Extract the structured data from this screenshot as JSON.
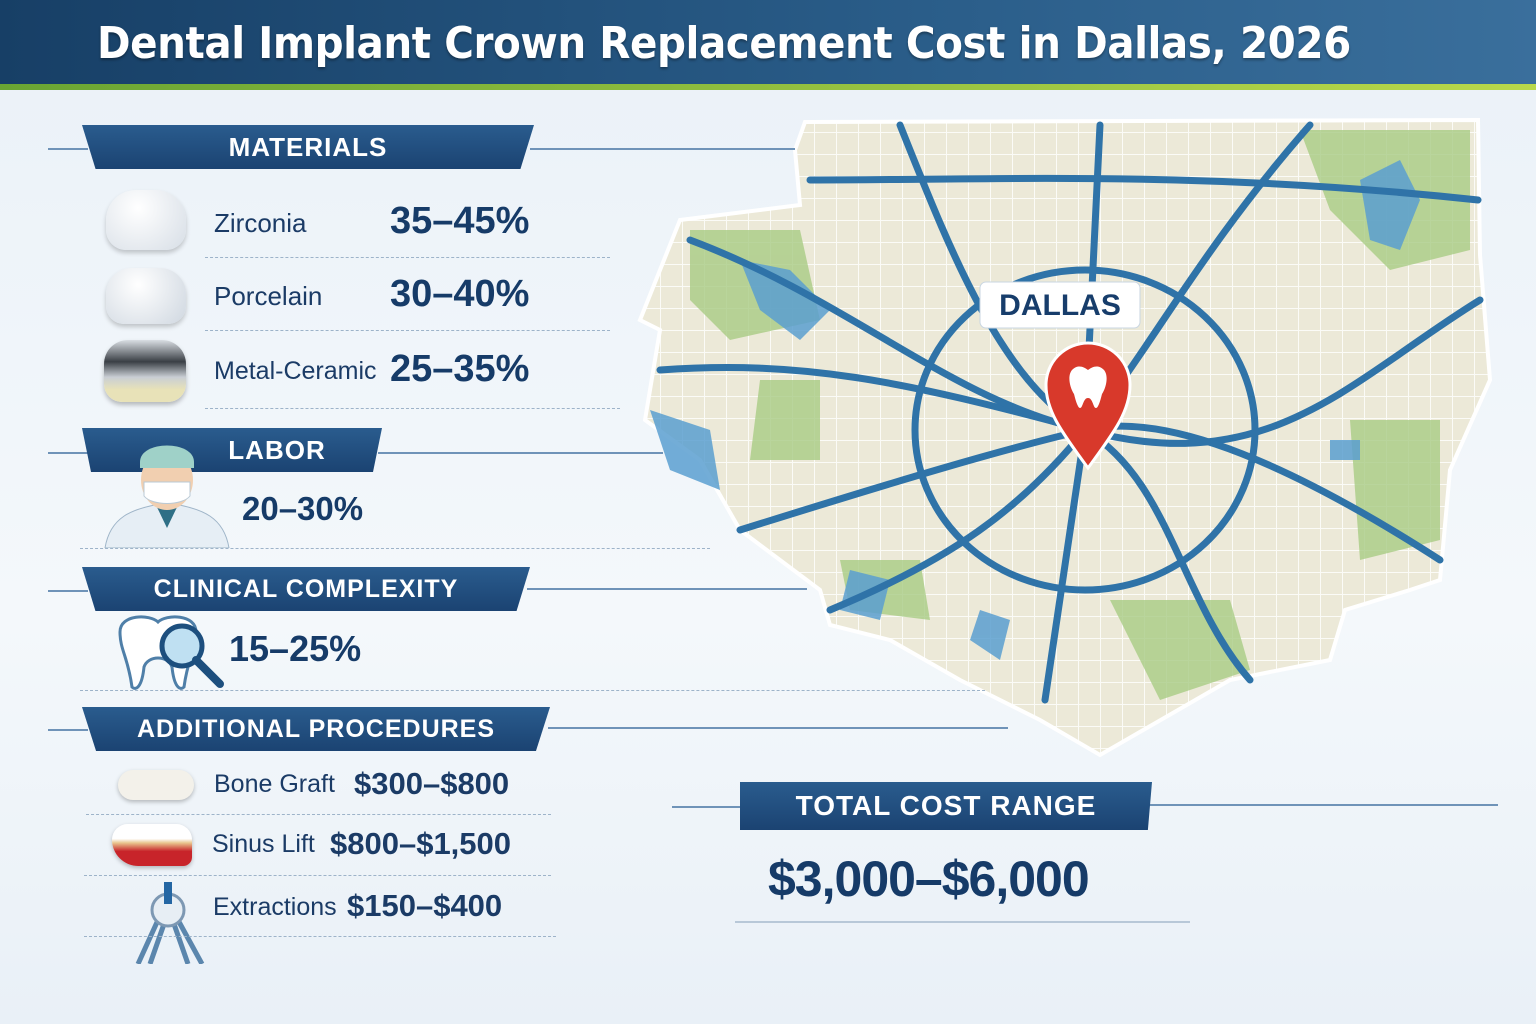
{
  "title": "Dental Implant Crown Replacement Cost in Dallas, 2026",
  "materials": {
    "heading": "MATERIALS",
    "items": [
      {
        "label": "Zirconia",
        "value": "35–45%",
        "icon": "crown-icon"
      },
      {
        "label": "Porcelain",
        "value": "30–40%",
        "icon": "crown-icon"
      },
      {
        "label": "Metal-Ceramic",
        "value": "25–35%",
        "icon": "metal-crown-icon"
      }
    ]
  },
  "labor": {
    "heading": "LABOR",
    "value": "20–30%",
    "icon": "dentist-icon"
  },
  "clinical": {
    "heading": "CLINICAL COMPLEXITY",
    "value": "15–25%",
    "icon": "tooth-magnifier-icon"
  },
  "additional": {
    "heading": "ADDITIONAL PROCEDURES",
    "items": [
      {
        "label": "Bone Graft",
        "value": "$300–$800",
        "icon": "bone-icon"
      },
      {
        "label": "Sinus Lift",
        "value": "$800–$1,500",
        "icon": "sinus-icon"
      },
      {
        "label": "Extractions",
        "value": "$150–$400",
        "icon": "forceps-icon"
      }
    ]
  },
  "map": {
    "city_label": "DALLAS",
    "pin_color": "#d8392b"
  },
  "total": {
    "heading": "TOTAL COST RANGE",
    "value": "$3,000–$6,000"
  },
  "colors": {
    "header": "#1b4372",
    "accent_green": "#8cc63f",
    "text": "#163b68"
  }
}
